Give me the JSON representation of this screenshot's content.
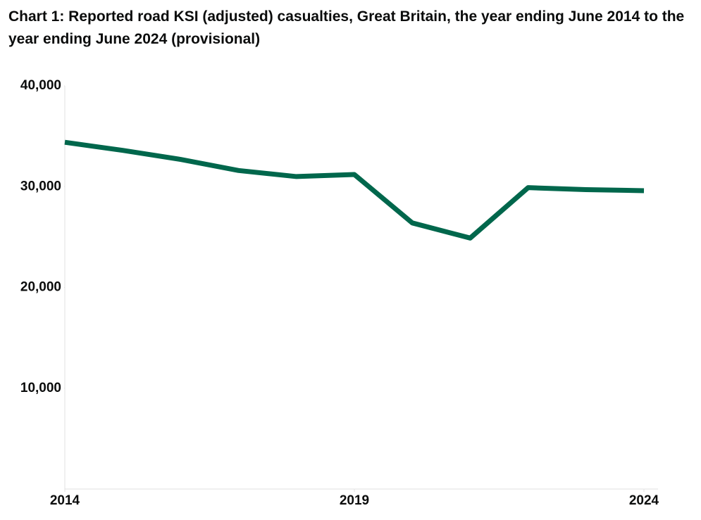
{
  "chart_data": {
    "type": "line",
    "title": "Chart 1: Reported road KSI (adjusted) casualties, Great Britain, the year ending June 2014 to the year ending June 2024 (provisional)",
    "x": [
      2014,
      2015,
      2016,
      2017,
      2018,
      2019,
      2020,
      2021,
      2022,
      2023,
      2024
    ],
    "series": [
      {
        "color": "#00674c",
        "values": [
          34400,
          33600,
          32700,
          31600,
          31000,
          31200,
          26400,
          24900,
          29900,
          29700,
          29600
        ]
      }
    ],
    "xlim": [
      2014,
      2024
    ],
    "xticks": [
      2014,
      2019,
      2024
    ],
    "ylim": [
      0,
      40000
    ],
    "yticks": [
      {
        "value": 10000,
        "label": "10,000"
      },
      {
        "value": 20000,
        "label": "20,000"
      },
      {
        "value": 30000,
        "label": "30,000"
      },
      {
        "value": 40000,
        "label": "40,000"
      }
    ]
  }
}
